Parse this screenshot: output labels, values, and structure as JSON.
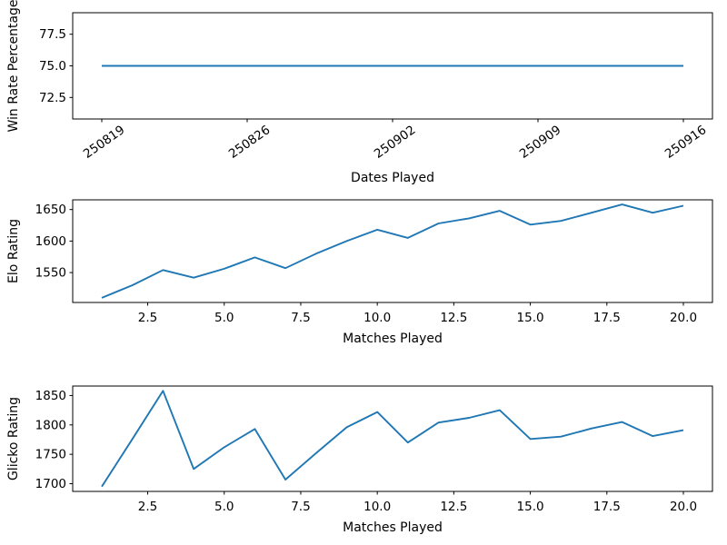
{
  "figure": {
    "background": "#ffffff",
    "line_color": "#1f77b4",
    "text_color": "#000000",
    "grid": false,
    "legend": false
  },
  "chart_data": [
    {
      "id": "win-rate",
      "type": "line",
      "title": "",
      "xlabel": "Dates Played",
      "ylabel": "Win Rate Percentage",
      "x": [
        0,
        28
      ],
      "y": [
        75.0,
        75.0
      ],
      "note": "constant 75.0 win rate from 250819 through 250916",
      "xlim": [
        -1.4,
        29.4
      ],
      "ylim": [
        70.8,
        79.2
      ],
      "xticks": {
        "values": [
          0,
          7,
          14,
          21,
          28
        ],
        "labels": [
          "250819",
          "250826",
          "250902",
          "250909",
          "250916"
        ],
        "rotation": -35
      },
      "yticks": {
        "values": [
          72.5,
          75.0,
          77.5
        ],
        "labels": [
          "72.5",
          "75.0",
          "77.5"
        ]
      }
    },
    {
      "id": "elo",
      "type": "line",
      "title": "",
      "xlabel": "Matches Played",
      "ylabel": "Elo Rating",
      "x": [
        1,
        2,
        3,
        4,
        5,
        6,
        7,
        8,
        9,
        10,
        11,
        12,
        13,
        14,
        15,
        16,
        17,
        18,
        19,
        20
      ],
      "y": [
        1510,
        1530,
        1554,
        1542,
        1556,
        1574,
        1557,
        1580,
        1600,
        1618,
        1605,
        1628,
        1636,
        1648,
        1626,
        1632,
        1645,
        1658,
        1645,
        1656
      ],
      "xlim": [
        0.05,
        20.95
      ],
      "ylim": [
        1502.6,
        1665.4
      ],
      "xticks": {
        "values": [
          2.5,
          5.0,
          7.5,
          10.0,
          12.5,
          15.0,
          17.5,
          20.0
        ],
        "labels": [
          "2.5",
          "5.0",
          "7.5",
          "10.0",
          "12.5",
          "15.0",
          "17.5",
          "20.0"
        ],
        "rotation": 0
      },
      "yticks": {
        "values": [
          1550,
          1600,
          1650
        ],
        "labels": [
          "1550",
          "1600",
          "1650"
        ]
      }
    },
    {
      "id": "glicko",
      "type": "line",
      "title": "",
      "xlabel": "Matches Played",
      "ylabel": "Glicko Rating",
      "x": [
        1,
        2,
        3,
        4,
        5,
        6,
        7,
        8,
        9,
        10,
        11,
        12,
        13,
        14,
        15,
        16,
        17,
        18,
        19,
        20
      ],
      "y": [
        1695,
        1776,
        1858,
        1725,
        1762,
        1793,
        1707,
        1752,
        1796,
        1822,
        1770,
        1804,
        1812,
        1825,
        1776,
        1780,
        1794,
        1805,
        1781,
        1791
      ],
      "xlim": [
        0.05,
        20.95
      ],
      "ylim": [
        1686.85,
        1866.15
      ],
      "xticks": {
        "values": [
          2.5,
          5.0,
          7.5,
          10.0,
          12.5,
          15.0,
          17.5,
          20.0
        ],
        "labels": [
          "2.5",
          "5.0",
          "7.5",
          "10.0",
          "12.5",
          "15.0",
          "17.5",
          "20.0"
        ],
        "rotation": 0
      },
      "yticks": {
        "values": [
          1700,
          1750,
          1800,
          1850
        ],
        "labels": [
          "1700",
          "1750",
          "1800",
          "1850"
        ]
      }
    }
  ]
}
